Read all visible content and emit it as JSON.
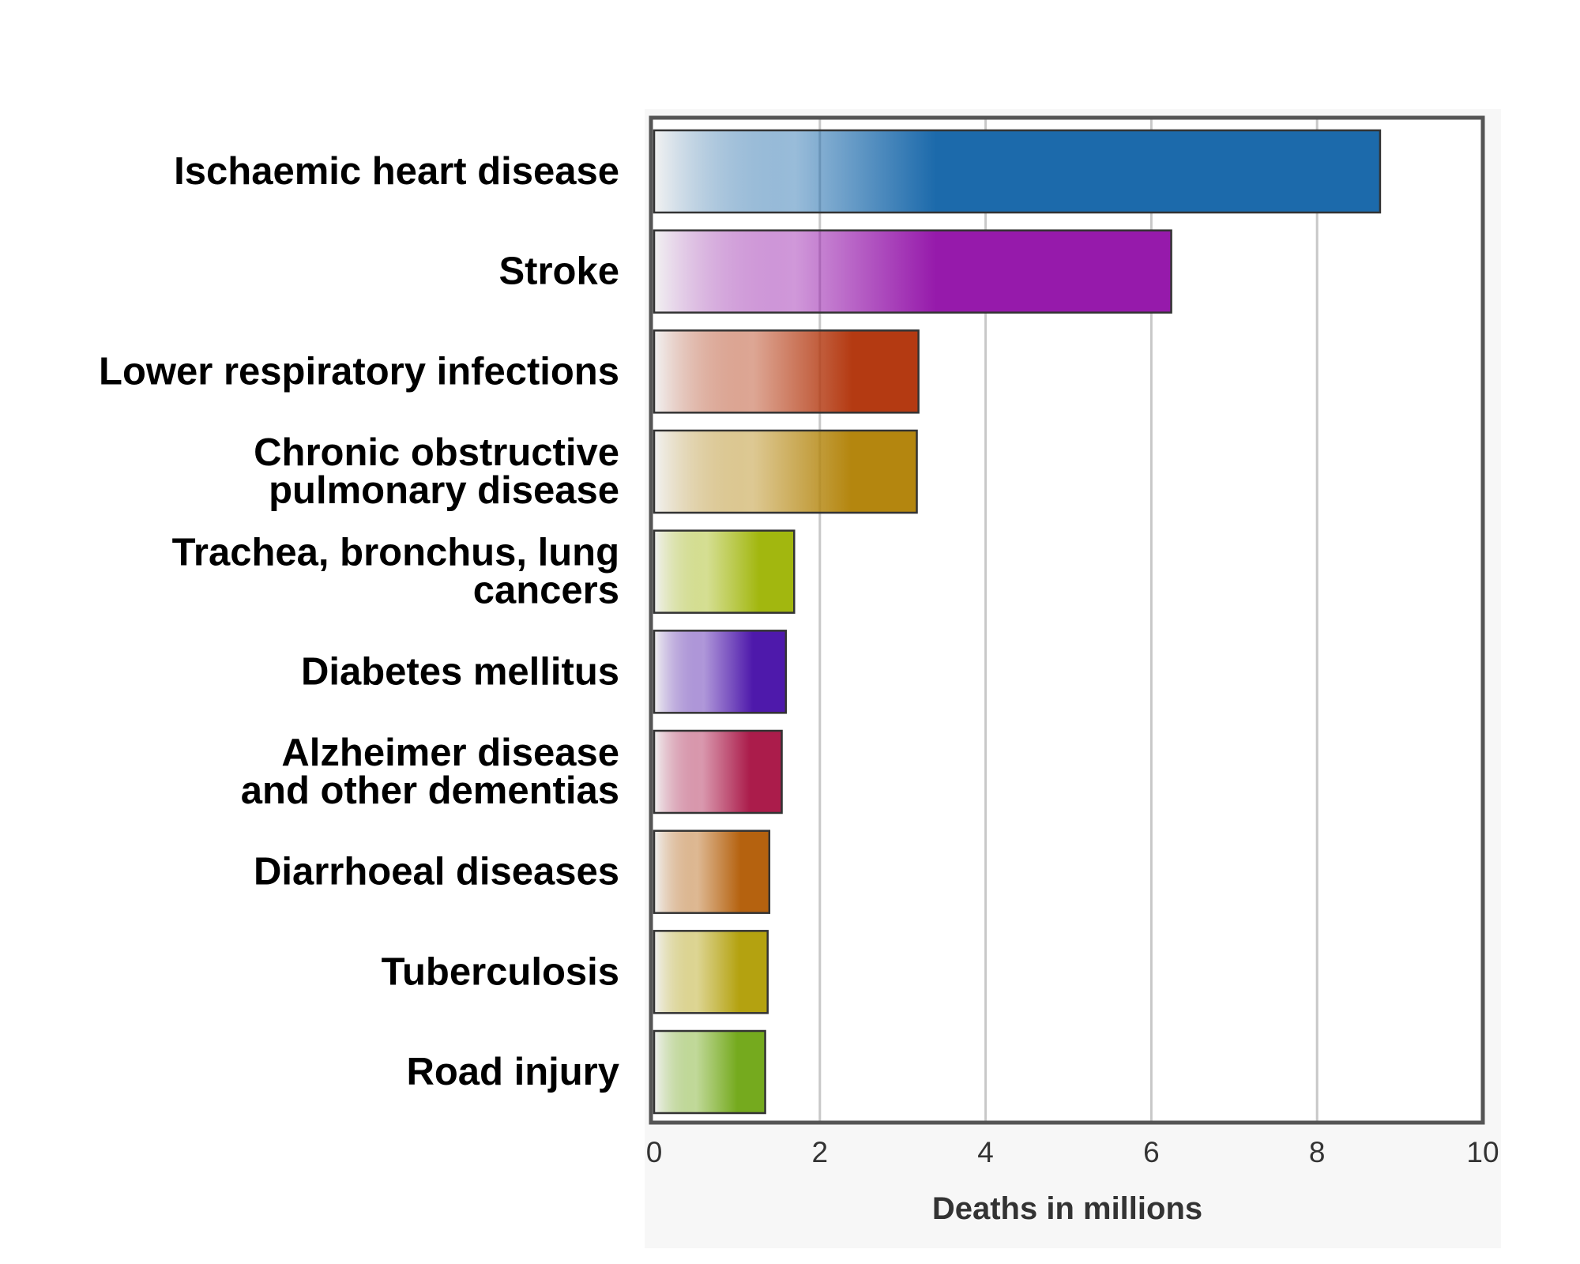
{
  "chart_data": {
    "type": "bar",
    "orientation": "horizontal",
    "title": "",
    "xlabel": "Deaths in millions",
    "ylabel": "",
    "xlim": [
      0,
      10
    ],
    "x_ticks": [
      0,
      2,
      4,
      6,
      8,
      10
    ],
    "grid": "vertical lines",
    "legend": "none",
    "categories": [
      [
        "Ischaemic heart disease"
      ],
      [
        "Stroke"
      ],
      [
        "Lower respiratory infections"
      ],
      [
        "Chronic obstructive",
        "pulmonary disease"
      ],
      [
        "Trachea, bronchus, lung",
        "cancers"
      ],
      [
        "Diabetes mellitus"
      ],
      [
        "Alzheimer disease",
        "and other dementias"
      ],
      [
        "Diarrhoeal diseases"
      ],
      [
        "Tuberculosis"
      ],
      [
        "Road injury"
      ]
    ],
    "values": [
      8.76,
      6.24,
      3.19,
      3.17,
      1.69,
      1.59,
      1.54,
      1.39,
      1.37,
      1.34
    ],
    "colors": [
      "#1c6aab",
      "#961aab",
      "#b43a12",
      "#b4860f",
      "#a2b70f",
      "#4e19ab",
      "#ab1c4b",
      "#b5620f",
      "#b4a210",
      "#75aa1e"
    ]
  }
}
